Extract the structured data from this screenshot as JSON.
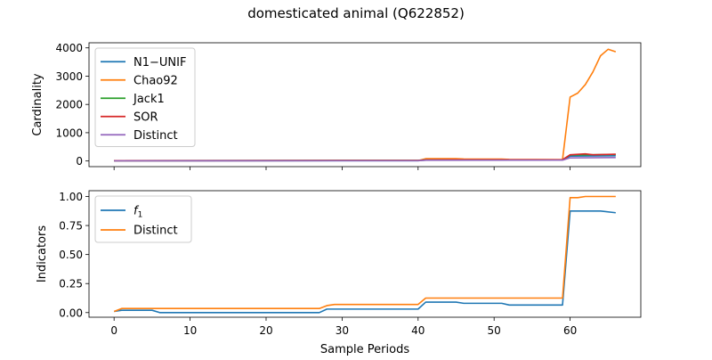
{
  "figure": {
    "title": "domesticated animal (Q622852)"
  },
  "chart_data": [
    {
      "type": "line",
      "ylabel": "Cardinality",
      "xlabel": "",
      "xlim": [
        -3.3,
        69.3
      ],
      "ylim": [
        -200,
        4180
      ],
      "xticks": [
        0,
        10,
        20,
        30,
        40,
        50,
        60
      ],
      "yticks": [
        0,
        1000,
        2000,
        3000,
        4000
      ],
      "legend": "upper-left",
      "series": [
        {
          "name": "N1−UNIF",
          "color": "#1f77b4",
          "x": [
            0,
            40,
            41,
            59,
            60,
            66
          ],
          "y": [
            5,
            10,
            30,
            40,
            170,
            185
          ]
        },
        {
          "name": "Chao92",
          "color": "#ff7f0e",
          "x": [
            0,
            40,
            41,
            45,
            46,
            51,
            52,
            59,
            60,
            61,
            62,
            63,
            64,
            65,
            66
          ],
          "y": [
            10,
            15,
            80,
            80,
            70,
            65,
            55,
            45,
            2260,
            2400,
            2700,
            3150,
            3720,
            3950,
            3860
          ]
        },
        {
          "name": "Jack1",
          "color": "#2ca02c",
          "x": [
            0,
            40,
            41,
            59,
            60,
            66
          ],
          "y": [
            10,
            20,
            40,
            45,
            210,
            230
          ]
        },
        {
          "name": "SOR",
          "color": "#d62728",
          "x": [
            0,
            40,
            41,
            59,
            60,
            62,
            63,
            66
          ],
          "y": [
            10,
            20,
            40,
            45,
            220,
            250,
            220,
            240
          ]
        },
        {
          "name": "Distinct",
          "color": "#9467bd",
          "x": [
            0,
            40,
            41,
            59,
            60,
            66
          ],
          "y": [
            5,
            10,
            25,
            30,
            110,
            120
          ]
        }
      ]
    },
    {
      "type": "line",
      "ylabel": "Indicators",
      "xlabel": "Sample Periods",
      "xlim": [
        -3.3,
        69.3
      ],
      "ylim": [
        -0.04,
        1.05
      ],
      "xticks": [
        0,
        10,
        20,
        30,
        40,
        50,
        60
      ],
      "yticks": [
        "0.00",
        "0.25",
        "0.50",
        "0.75",
        "1.00"
      ],
      "legend": "upper-left",
      "series": [
        {
          "name": "f1",
          "color": "#1f77b4",
          "x": [
            0,
            1,
            5,
            6,
            27,
            28,
            40,
            41,
            45,
            46,
            51,
            52,
            59,
            60,
            64,
            66
          ],
          "y": [
            0.01,
            0.02,
            0.02,
            0.0,
            0.0,
            0.03,
            0.03,
            0.09,
            0.09,
            0.08,
            0.08,
            0.065,
            0.065,
            0.875,
            0.875,
            0.86
          ]
        },
        {
          "name": "Distinct",
          "color": "#ff7f0e",
          "x": [
            0,
            1,
            27,
            28,
            29,
            40,
            41,
            59,
            60,
            61,
            62,
            66
          ],
          "y": [
            0.01,
            0.035,
            0.035,
            0.06,
            0.07,
            0.07,
            0.125,
            0.125,
            0.99,
            0.99,
            1.0,
            1.0
          ]
        }
      ]
    }
  ]
}
